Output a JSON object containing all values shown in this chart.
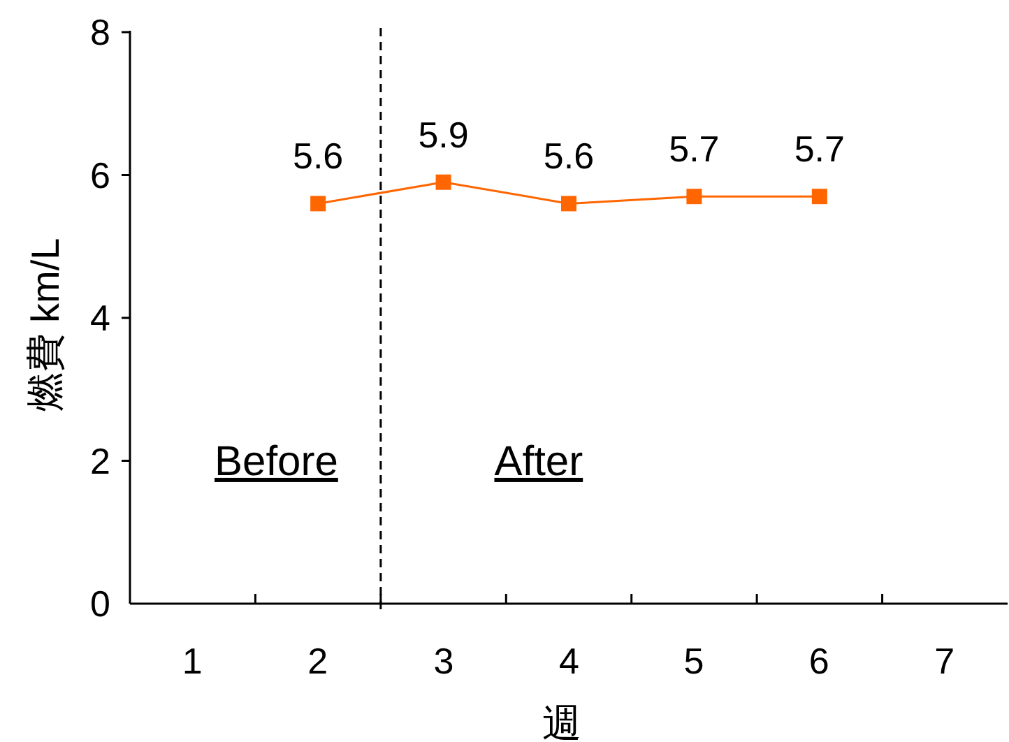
{
  "chart_data": {
    "type": "line",
    "xlabel": "週",
    "ylabel": "燃費  km/L",
    "x": [
      2,
      3,
      4,
      5,
      6
    ],
    "series": [
      {
        "color": "#ff6600",
        "values": [
          5.6,
          5.9,
          5.6,
          5.7,
          5.7
        ]
      }
    ],
    "xlim": [
      0.5,
      7.5
    ],
    "xticks": [
      1,
      2,
      3,
      4,
      5,
      6,
      7,
      {
        "value": 1.5,
        "label": null
      },
      {
        "value": 2.5,
        "label": null
      },
      {
        "value": 3.5,
        "label": null
      },
      {
        "value": 4.5,
        "label": null
      },
      {
        "value": 5.5,
        "label": null
      },
      {
        "value": 6.5,
        "label": null
      }
    ],
    "ylim": [
      0,
      8
    ],
    "yticks": [
      0,
      2,
      4,
      6,
      8
    ],
    "ref_lines": [
      {
        "axis": "x",
        "value": 2.5,
        "color": "#000000",
        "line_style": "dashed"
      }
    ],
    "annotations": [
      "Before",
      "After"
    ],
    "data_labels": true,
    "marker": "square",
    "line_style": "solid",
    "grid": false
  }
}
